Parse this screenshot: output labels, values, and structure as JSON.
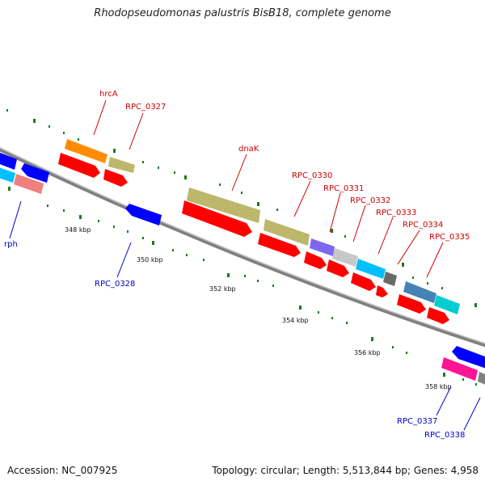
{
  "title": "Rhodopseudomonas palustris BisB18, complete genome",
  "accession": "Accession: NC_007925",
  "summary": "Topology: circular; Length: 5,513,844 bp; Genes: 4,958",
  "colors": {
    "forward_gene": "#ff0000",
    "reverse_gene": "#0000ff",
    "tick": "#1a7a1a",
    "backbone": "#808080",
    "label_forward": "#cc0000",
    "label_reverse": "#0000cc"
  },
  "ticks": [
    {
      "label": "348 kbp"
    },
    {
      "label": "350 kbp"
    },
    {
      "label": "352 kbp"
    },
    {
      "label": "354 kbp"
    },
    {
      "label": "356 kbp"
    },
    {
      "label": "358 kbp"
    }
  ],
  "forward_labels": [
    {
      "text": "hrcA"
    },
    {
      "text": "RPC_0327"
    },
    {
      "text": "dnaK"
    },
    {
      "text": "RPC_0330"
    },
    {
      "text": "RPC_0331"
    },
    {
      "text": "RPC_0332"
    },
    {
      "text": "RPC_0333"
    },
    {
      "text": "RPC_0334"
    },
    {
      "text": "RPC_0335"
    }
  ],
  "reverse_labels": [
    {
      "text": "rph"
    },
    {
      "text": "RPC_0328"
    },
    {
      "text": "RPC_0337"
    },
    {
      "text": "RPC_0338"
    }
  ]
}
